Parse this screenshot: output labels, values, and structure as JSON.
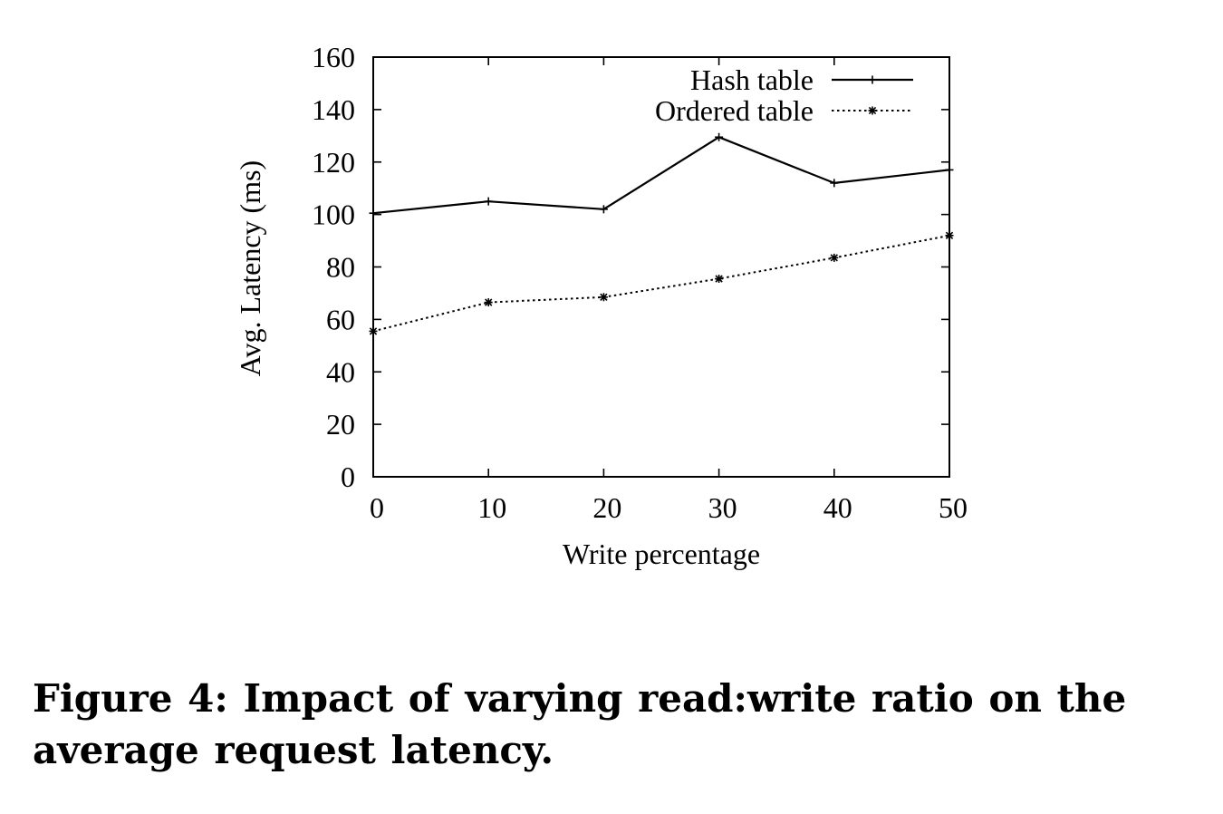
{
  "figure": {
    "caption": "Figure 4: Impact of varying read:write ratio on the average request latency."
  },
  "chart_data": {
    "type": "line",
    "title": "",
    "xlabel": "Write percentage",
    "ylabel": "Avg. Latency (ms)",
    "xlim": [
      0,
      50
    ],
    "ylim": [
      0,
      160
    ],
    "xticks": [
      0,
      10,
      20,
      30,
      40,
      50
    ],
    "yticks": [
      0,
      20,
      40,
      60,
      80,
      100,
      120,
      140,
      160
    ],
    "grid": false,
    "legend_position": "top-right",
    "x": [
      0,
      10,
      20,
      30,
      40,
      50
    ],
    "series": [
      {
        "name": "Hash table",
        "values": [
          100.5,
          105,
          102,
          129.5,
          112,
          117
        ],
        "line_style": "solid",
        "marker": "plus",
        "color": "#000000"
      },
      {
        "name": "Ordered table",
        "values": [
          55.5,
          66.5,
          68.5,
          75.5,
          83.5,
          92
        ],
        "line_style": "dotted",
        "marker": "star",
        "color": "#000000"
      }
    ]
  }
}
